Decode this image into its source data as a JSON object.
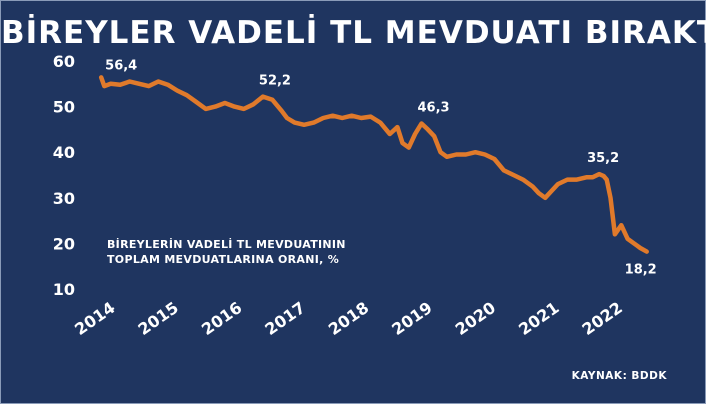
{
  "title": "BİREYLER VADELİ TL MEVDUATI BIRAKTI",
  "note_line1": "BİREYLERİN VADELİ TL MEVDUATININ",
  "note_line2": "TOPLAM MEVDUATLARINA ORANI, %",
  "source": "KAYNAK: BDDK",
  "colors": {
    "background": "#1f3560",
    "line": "#e07a2b",
    "text": "#ffffff"
  },
  "chart_data": {
    "type": "line",
    "title": "BİREYLER VADELİ TL MEVDUATI BIRAKTI",
    "xlabel": "",
    "ylabel": "",
    "ylim": [
      10,
      60
    ],
    "y_ticks": [
      60,
      50,
      40,
      30,
      20,
      10
    ],
    "x_ticks": [
      "2014",
      "2015",
      "2016",
      "2017",
      "2018",
      "2019",
      "2020",
      "2021",
      "2022"
    ],
    "x_range": [
      2014.0,
      2022.75
    ],
    "grid": false,
    "series": [
      {
        "name": "",
        "x": [
          2014.05,
          2014.1,
          2014.2,
          2014.35,
          2014.5,
          2014.65,
          2014.8,
          2014.95,
          2015.1,
          2015.25,
          2015.4,
          2015.55,
          2015.7,
          2015.85,
          2016.0,
          2016.15,
          2016.3,
          2016.45,
          2016.6,
          2016.75,
          2016.9,
          2016.98,
          2017.1,
          2017.25,
          2017.4,
          2017.55,
          2017.7,
          2017.85,
          2018.0,
          2018.15,
          2018.3,
          2018.45,
          2018.6,
          2018.72,
          2018.8,
          2018.9,
          2019.0,
          2019.1,
          2019.2,
          2019.3,
          2019.4,
          2019.5,
          2019.65,
          2019.8,
          2019.95,
          2020.1,
          2020.25,
          2020.4,
          2020.55,
          2020.7,
          2020.85,
          2020.95,
          2021.05,
          2021.15,
          2021.25,
          2021.4,
          2021.55,
          2021.7,
          2021.8,
          2021.9,
          2021.97,
          2022.02,
          2022.08,
          2022.15,
          2022.25,
          2022.35,
          2022.45,
          2022.55,
          2022.65
        ],
        "values": [
          56.4,
          54.5,
          55.0,
          54.8,
          55.5,
          55.0,
          54.5,
          55.5,
          54.8,
          53.5,
          52.5,
          51.0,
          49.5,
          50.0,
          50.8,
          50.0,
          49.5,
          50.5,
          52.2,
          51.5,
          49.0,
          47.5,
          46.5,
          46.0,
          46.5,
          47.5,
          48.0,
          47.5,
          48.0,
          47.5,
          47.8,
          46.5,
          44.0,
          45.5,
          42.0,
          41.0,
          44.0,
          46.3,
          45.0,
          43.5,
          40.0,
          39.0,
          39.5,
          39.5,
          40.0,
          39.5,
          38.5,
          36.0,
          35.0,
          34.0,
          32.5,
          31.0,
          30.0,
          31.5,
          33.0,
          34.0,
          34.0,
          34.5,
          34.5,
          35.2,
          34.8,
          34.0,
          30.0,
          22.0,
          24.0,
          21.0,
          20.0,
          19.0,
          18.2
        ]
      }
    ],
    "annotations": [
      {
        "x": 2014.05,
        "y": 56.4,
        "text": "56,4"
      },
      {
        "x": 2016.6,
        "y": 52.2,
        "text": "52,2"
      },
      {
        "x": 2019.1,
        "y": 46.3,
        "text": "46,3"
      },
      {
        "x": 2021.9,
        "y": 35.2,
        "text": "35,2"
      },
      {
        "x": 2022.65,
        "y": 18.2,
        "text": "18,2"
      }
    ]
  }
}
